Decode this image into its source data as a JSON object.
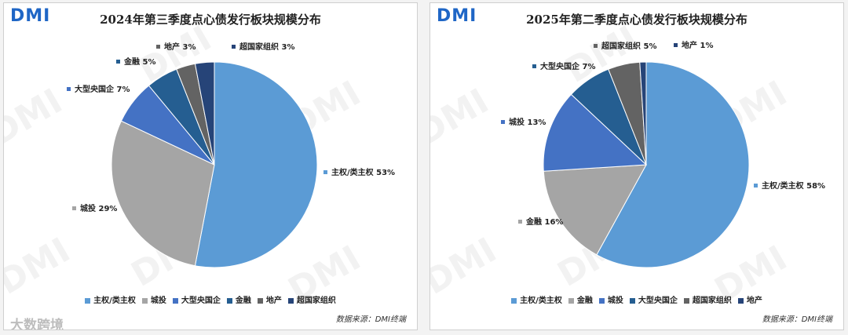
{
  "logo_text": "DMI",
  "watermark_text": "DMI",
  "brand_overlay": "大数跨境",
  "chart_data": [
    {
      "type": "pie",
      "title": "2024年第三季度点心债发行板块规模分布",
      "source": "数据来源：DMI终端",
      "slices": [
        {
          "name": "主权/类主权",
          "value": 53,
          "label": "主权/类主权 53%",
          "color": "#5b9bd5"
        },
        {
          "name": "城投",
          "value": 29,
          "label": "城投 29%",
          "color": "#a5a5a5"
        },
        {
          "name": "大型央国企",
          "value": 7,
          "label": "大型央国企 7%",
          "color": "#4472c4"
        },
        {
          "name": "金融",
          "value": 5,
          "label": "金融 5%",
          "color": "#255e91"
        },
        {
          "name": "地产",
          "value": 3,
          "label": "地产 3%",
          "color": "#636363"
        },
        {
          "name": "超国家组织",
          "value": 3,
          "label": "超国家组织 3%",
          "color": "#264478"
        }
      ]
    },
    {
      "type": "pie",
      "title": "2025年第二季度点心债发行板块规模分布",
      "source": "数据来源：DMI终端",
      "slices": [
        {
          "name": "主权/类主权",
          "value": 58,
          "label": "主权/类主权 58%",
          "color": "#5b9bd5"
        },
        {
          "name": "金融",
          "value": 16,
          "label": "金融 16%",
          "color": "#a5a5a5"
        },
        {
          "name": "城投",
          "value": 13,
          "label": "城投 13%",
          "color": "#4472c4"
        },
        {
          "name": "大型央国企",
          "value": 7,
          "label": "大型央国企 7%",
          "color": "#255e91"
        },
        {
          "name": "超国家组织",
          "value": 5,
          "label": "超国家组织 5%",
          "color": "#636363"
        },
        {
          "name": "地产",
          "value": 1,
          "label": "地产 1%",
          "color": "#264478"
        }
      ]
    }
  ]
}
